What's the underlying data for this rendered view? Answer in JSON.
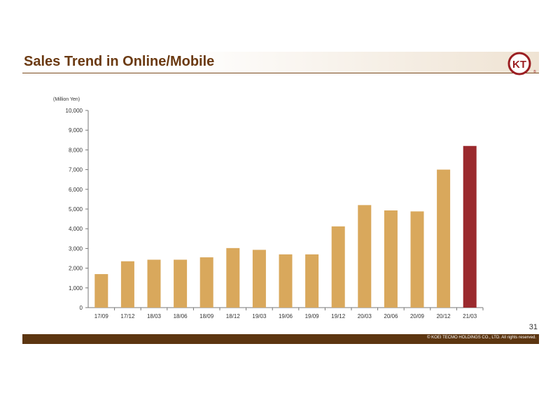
{
  "header": {
    "title": "Sales Trend in Online/Mobile"
  },
  "logo": {
    "text": "KT",
    "icon": "koei-tecmo-logo-icon"
  },
  "footer": {
    "page_number": "31",
    "copyright": "© KOEI TECMO HOLDINGS CO., LTD. All rights reserved."
  },
  "colors": {
    "bar": "#d9a85c",
    "highlight": "#9b2a2e",
    "brand": "#6b3a12",
    "footer": "#5c3510"
  },
  "chart_data": {
    "type": "bar",
    "unit_label": "(Million Yen)",
    "categories": [
      "17/09",
      "17/12",
      "18/03",
      "18/06",
      "18/09",
      "18/12",
      "19/03",
      "19/06",
      "19/09",
      "19/12",
      "20/03",
      "20/06",
      "20/09",
      "20/12",
      "21/03"
    ],
    "values": [
      1700,
      2350,
      2430,
      2430,
      2550,
      3020,
      2930,
      2700,
      2700,
      4120,
      5200,
      4930,
      4880,
      7000,
      8200
    ],
    "highlight_index": 14,
    "ylim": [
      0,
      10000
    ],
    "yticks": [
      0,
      1000,
      2000,
      3000,
      4000,
      5000,
      6000,
      7000,
      8000,
      9000,
      10000
    ],
    "ytick_labels": [
      "0",
      "1,000",
      "2,000",
      "3,000",
      "4,000",
      "5,000",
      "6,000",
      "7,000",
      "8,000",
      "9,000",
      "10,000"
    ],
    "grid": false,
    "legend": "none"
  }
}
